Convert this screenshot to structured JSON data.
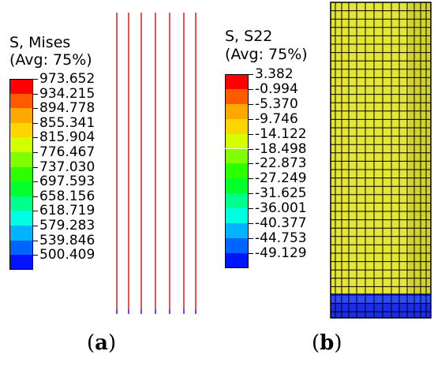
{
  "panel_a": {
    "label_open": "(",
    "label_letter": "a",
    "label_close": ")",
    "legend_title_line1": "S, Mises",
    "legend_title_line2": "(Avg: 75%)",
    "legend_values": [
      "973.652",
      "934.215",
      "894.778",
      "855.341",
      "815.904",
      "776.467",
      "737.030",
      "697.593",
      "658.156",
      "618.719",
      "579.283",
      "539.846",
      "500.409"
    ],
    "wire_color": "#e8262b",
    "wire_tip_color": "#2424ff"
  },
  "panel_b": {
    "label_open": "(",
    "label_letter": "b",
    "label_close": ")",
    "legend_title_line1": "S, S22",
    "legend_title_line2": "(Avg: 75%)",
    "legend_values": [
      "3.382",
      "-0.994",
      "-5.370",
      "-9.746",
      "-14.122",
      "-18.498",
      "-22.873",
      "-27.249",
      "-31.625",
      "-36.001",
      "-40.377",
      "-44.753",
      "-49.129"
    ],
    "cylinder_color": "#e3e635",
    "cylinder_base_color": "#1a2ee8"
  },
  "colorbar": [
    "#ff0000",
    "#ff5a00",
    "#ffa800",
    "#ffd500",
    "#d4ff00",
    "#7fff00",
    "#2bff00",
    "#00ff2b",
    "#00ff8c",
    "#00ffe0",
    "#00b4ff",
    "#0064ff",
    "#0014ff"
  ]
}
